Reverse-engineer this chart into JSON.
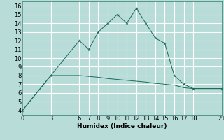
{
  "xlabel": "Humidex (Indice chaleur)",
  "background_color": "#b8ddd8",
  "grid_color": "#ffffff",
  "line_color": "#1a6b5a",
  "x_ticks": [
    0,
    3,
    6,
    7,
    8,
    9,
    10,
    11,
    12,
    13,
    14,
    15,
    16,
    17,
    18,
    21
  ],
  "ylim": [
    3.5,
    16.5
  ],
  "xlim": [
    0,
    21
  ],
  "series1_x": [
    0,
    3,
    6,
    7,
    8,
    9,
    10,
    11,
    12,
    13,
    14,
    15,
    16,
    17,
    18,
    21
  ],
  "series1_y": [
    4,
    8,
    12,
    11,
    13,
    14,
    15,
    14,
    15.7,
    14,
    12.3,
    11.7,
    8,
    7,
    6.5,
    6.5
  ],
  "series2_x": [
    0,
    3,
    6,
    7,
    8,
    9,
    10,
    11,
    12,
    13,
    14,
    15,
    16,
    17,
    18,
    21
  ],
  "series2_y": [
    4,
    8,
    8,
    7.9,
    7.8,
    7.65,
    7.55,
    7.45,
    7.35,
    7.25,
    7.1,
    7.0,
    6.9,
    6.6,
    6.5,
    6.5
  ],
  "yticks": [
    4,
    5,
    6,
    7,
    8,
    9,
    10,
    11,
    12,
    13,
    14,
    15,
    16
  ],
  "label_fontsize": 6.5,
  "tick_fontsize": 6.0
}
